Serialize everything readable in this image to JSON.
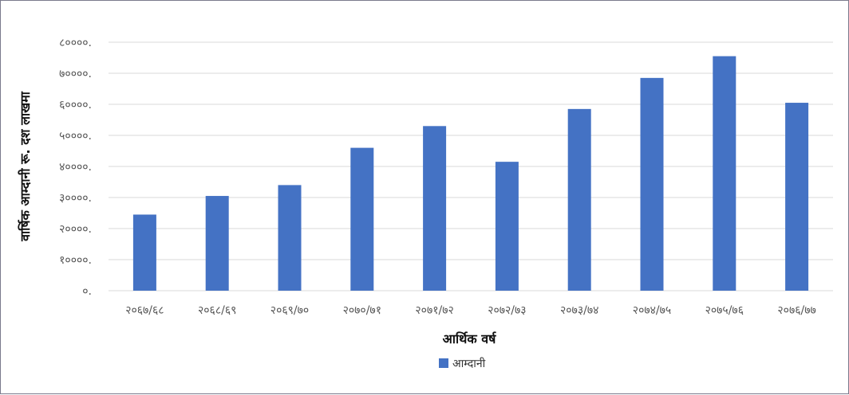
{
  "chart_data": {
    "type": "bar",
    "title": "",
    "xlabel": "आर्थिक वर्ष",
    "ylabel": "वार्षिक आम्दानी रू. दश लाखमा",
    "categories": [
      "२०६७/६८",
      "२०६८/६९",
      "२०६९/७०",
      "२०७०/७१",
      "२०७१/७२",
      "२०७२/७३",
      "२०७३/७४",
      "२०७४/७५",
      "२०७५/७६",
      "२०७६/७७"
    ],
    "series": [
      {
        "name": "आम्दानी",
        "values": [
          24500,
          30500,
          34000,
          46000,
          53000,
          41500,
          58500,
          68500,
          75500,
          60500
        ]
      }
    ],
    "ylim": [
      0,
      80000
    ],
    "yticks": [
      0,
      10000,
      20000,
      30000,
      40000,
      50000,
      60000,
      70000,
      80000
    ],
    "ytick_labels": [
      "०.",
      "१००००.",
      "२००००.",
      "३००००.",
      "४००००.",
      "५००००.",
      "६००००.",
      "७००००.",
      "८००००."
    ],
    "grid": true,
    "legend": "bottom",
    "bar_color": "#4472C4",
    "grid_color": "#d9d9d9"
  }
}
